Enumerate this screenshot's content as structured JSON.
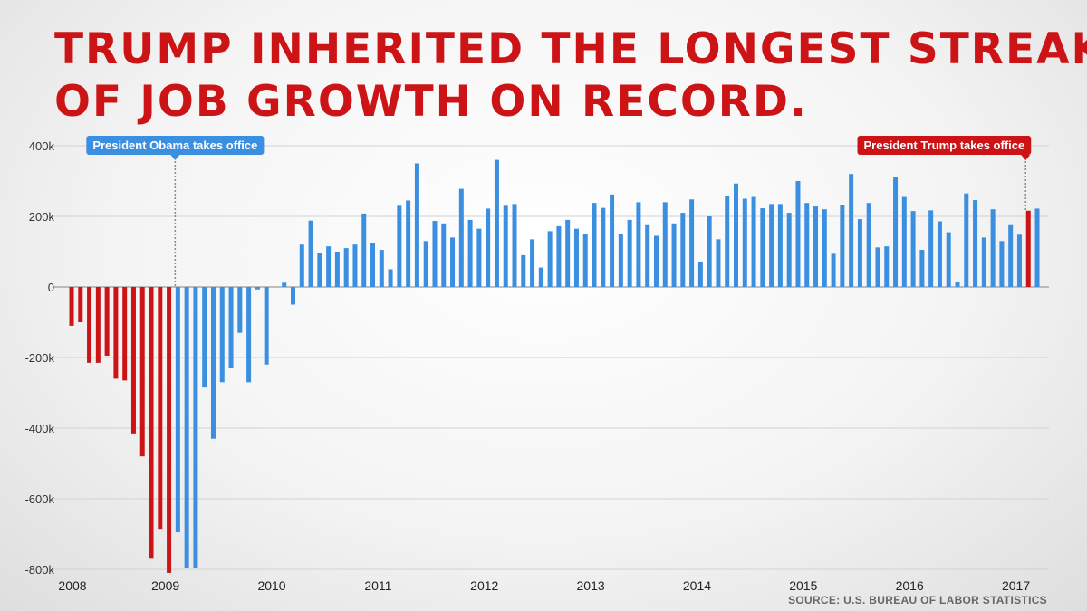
{
  "title": {
    "line1": "TRUMP INHERITED THE LONGEST STREAK",
    "line2": "OF JOB GROWTH ON RECORD."
  },
  "source": "SOURCE: U.S. BUREAU OF LABOR STATISTICS",
  "colors": {
    "red": "#cc1417",
    "blue": "#3b8fe0",
    "title_red": "#cc1417"
  },
  "chart_data": {
    "type": "bar",
    "ylim": [
      -800000,
      400000
    ],
    "y_ticks": [
      {
        "value": 400000,
        "label": "400k"
      },
      {
        "value": 200000,
        "label": "200k"
      },
      {
        "value": 0,
        "label": "0"
      },
      {
        "value": -200000,
        "label": "-200k"
      },
      {
        "value": -400000,
        "label": "-400k"
      },
      {
        "value": -600000,
        "label": "-600k"
      },
      {
        "value": -800000,
        "label": "-800k"
      }
    ],
    "x_ticks": [
      "2008",
      "2009",
      "2010",
      "2011",
      "2012",
      "2013",
      "2014",
      "2015",
      "2016",
      "2017"
    ],
    "start_year": 2008,
    "grid": true,
    "annotations": [
      {
        "label": "President Obama takes office",
        "bar_index": 12,
        "color": "#3b8fe0"
      },
      {
        "label": "President Trump takes office",
        "bar_index": 108,
        "color": "#cc1417"
      }
    ],
    "series": [
      {
        "color_groups": [
          {
            "from": 0,
            "to": 12,
            "color": "#cc1417"
          },
          {
            "from": 12,
            "to": 108,
            "color": "#3b8fe0"
          },
          {
            "from": 108,
            "to": 109,
            "color": "#cc1417"
          }
        ],
        "values": [
          -110000,
          -100000,
          -215000,
          -215000,
          -195000,
          -260000,
          -265000,
          -415000,
          -480000,
          -770000,
          -685000,
          -810000,
          -695000,
          -795000,
          -795000,
          -285000,
          -430000,
          -270000,
          -230000,
          -130000,
          -270000,
          -7000,
          -220000,
          0,
          12000,
          -50000,
          120000,
          188000,
          95000,
          115000,
          100000,
          110000,
          120000,
          208000,
          125000,
          105000,
          50000,
          230000,
          245000,
          350000,
          130000,
          187000,
          180000,
          140000,
          278000,
          190000,
          165000,
          222000,
          360000,
          230000,
          235000,
          90000,
          135000,
          55000,
          158000,
          172000,
          190000,
          165000,
          150000,
          238000,
          224000,
          262000,
          150000,
          190000,
          240000,
          175000,
          145000,
          240000,
          180000,
          210000,
          248000,
          72000,
          200000,
          135000,
          258000,
          293000,
          250000,
          255000,
          223000,
          235000,
          235000,
          210000,
          300000,
          238000,
          228000,
          220000,
          94000,
          232000,
          320000,
          192000,
          238000,
          112000,
          115000,
          312000,
          255000,
          215000,
          105000,
          217000,
          186000,
          155000,
          15000,
          265000,
          246000,
          140000,
          220000,
          130000,
          175000,
          148000,
          216000,
          222000
        ]
      }
    ]
  }
}
